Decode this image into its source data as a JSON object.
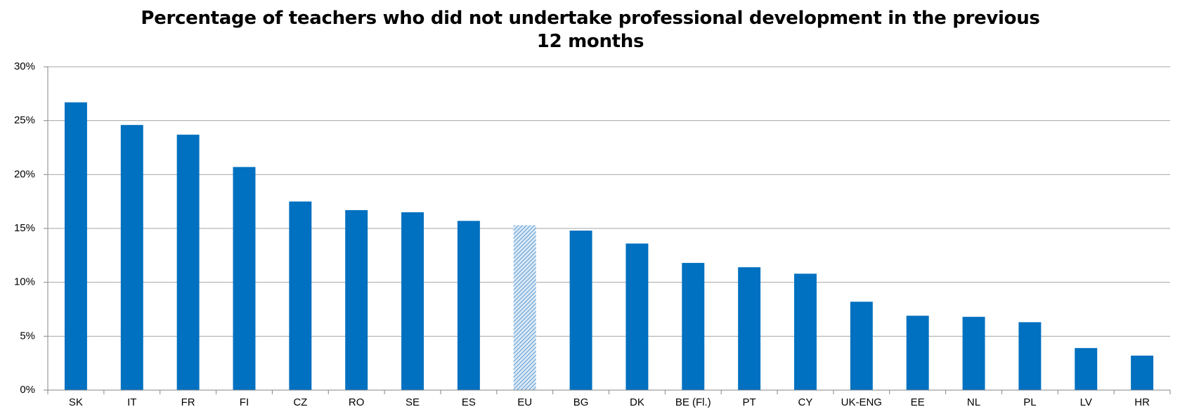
{
  "chart_data": {
    "type": "bar",
    "title": "Percentage of teachers who did not undertake professional development in the previous 12 months",
    "categories": [
      "SK",
      "IT",
      "FR",
      "FI",
      "CZ",
      "RO",
      "SE",
      "ES",
      "EU",
      "BG",
      "DK",
      "BE (Fl.)",
      "PT",
      "CY",
      "UK-ENG",
      "EE",
      "NL",
      "PL",
      "LV",
      "HR"
    ],
    "values": [
      26.7,
      24.6,
      23.7,
      20.7,
      17.5,
      16.7,
      16.5,
      15.7,
      15.3,
      14.8,
      13.6,
      11.8,
      11.4,
      10.8,
      8.2,
      6.9,
      6.8,
      6.3,
      3.9,
      3.2
    ],
    "bar_styles": [
      "solid",
      "solid",
      "solid",
      "solid",
      "solid",
      "solid",
      "solid",
      "solid",
      "hatched",
      "solid",
      "solid",
      "solid",
      "solid",
      "solid",
      "solid",
      "solid",
      "solid",
      "solid",
      "solid",
      "solid"
    ],
    "color": "#0070c0",
    "ylim": [
      0,
      30
    ],
    "yticks": [
      {
        "value": 0,
        "label": "0%"
      },
      {
        "value": 5,
        "label": "5%"
      },
      {
        "value": 10,
        "label": "10%"
      },
      {
        "value": 15,
        "label": "15%"
      },
      {
        "value": 20,
        "label": "20%"
      },
      {
        "value": 25,
        "label": "25%"
      },
      {
        "value": 30,
        "label": "30%"
      }
    ],
    "grid": true
  }
}
